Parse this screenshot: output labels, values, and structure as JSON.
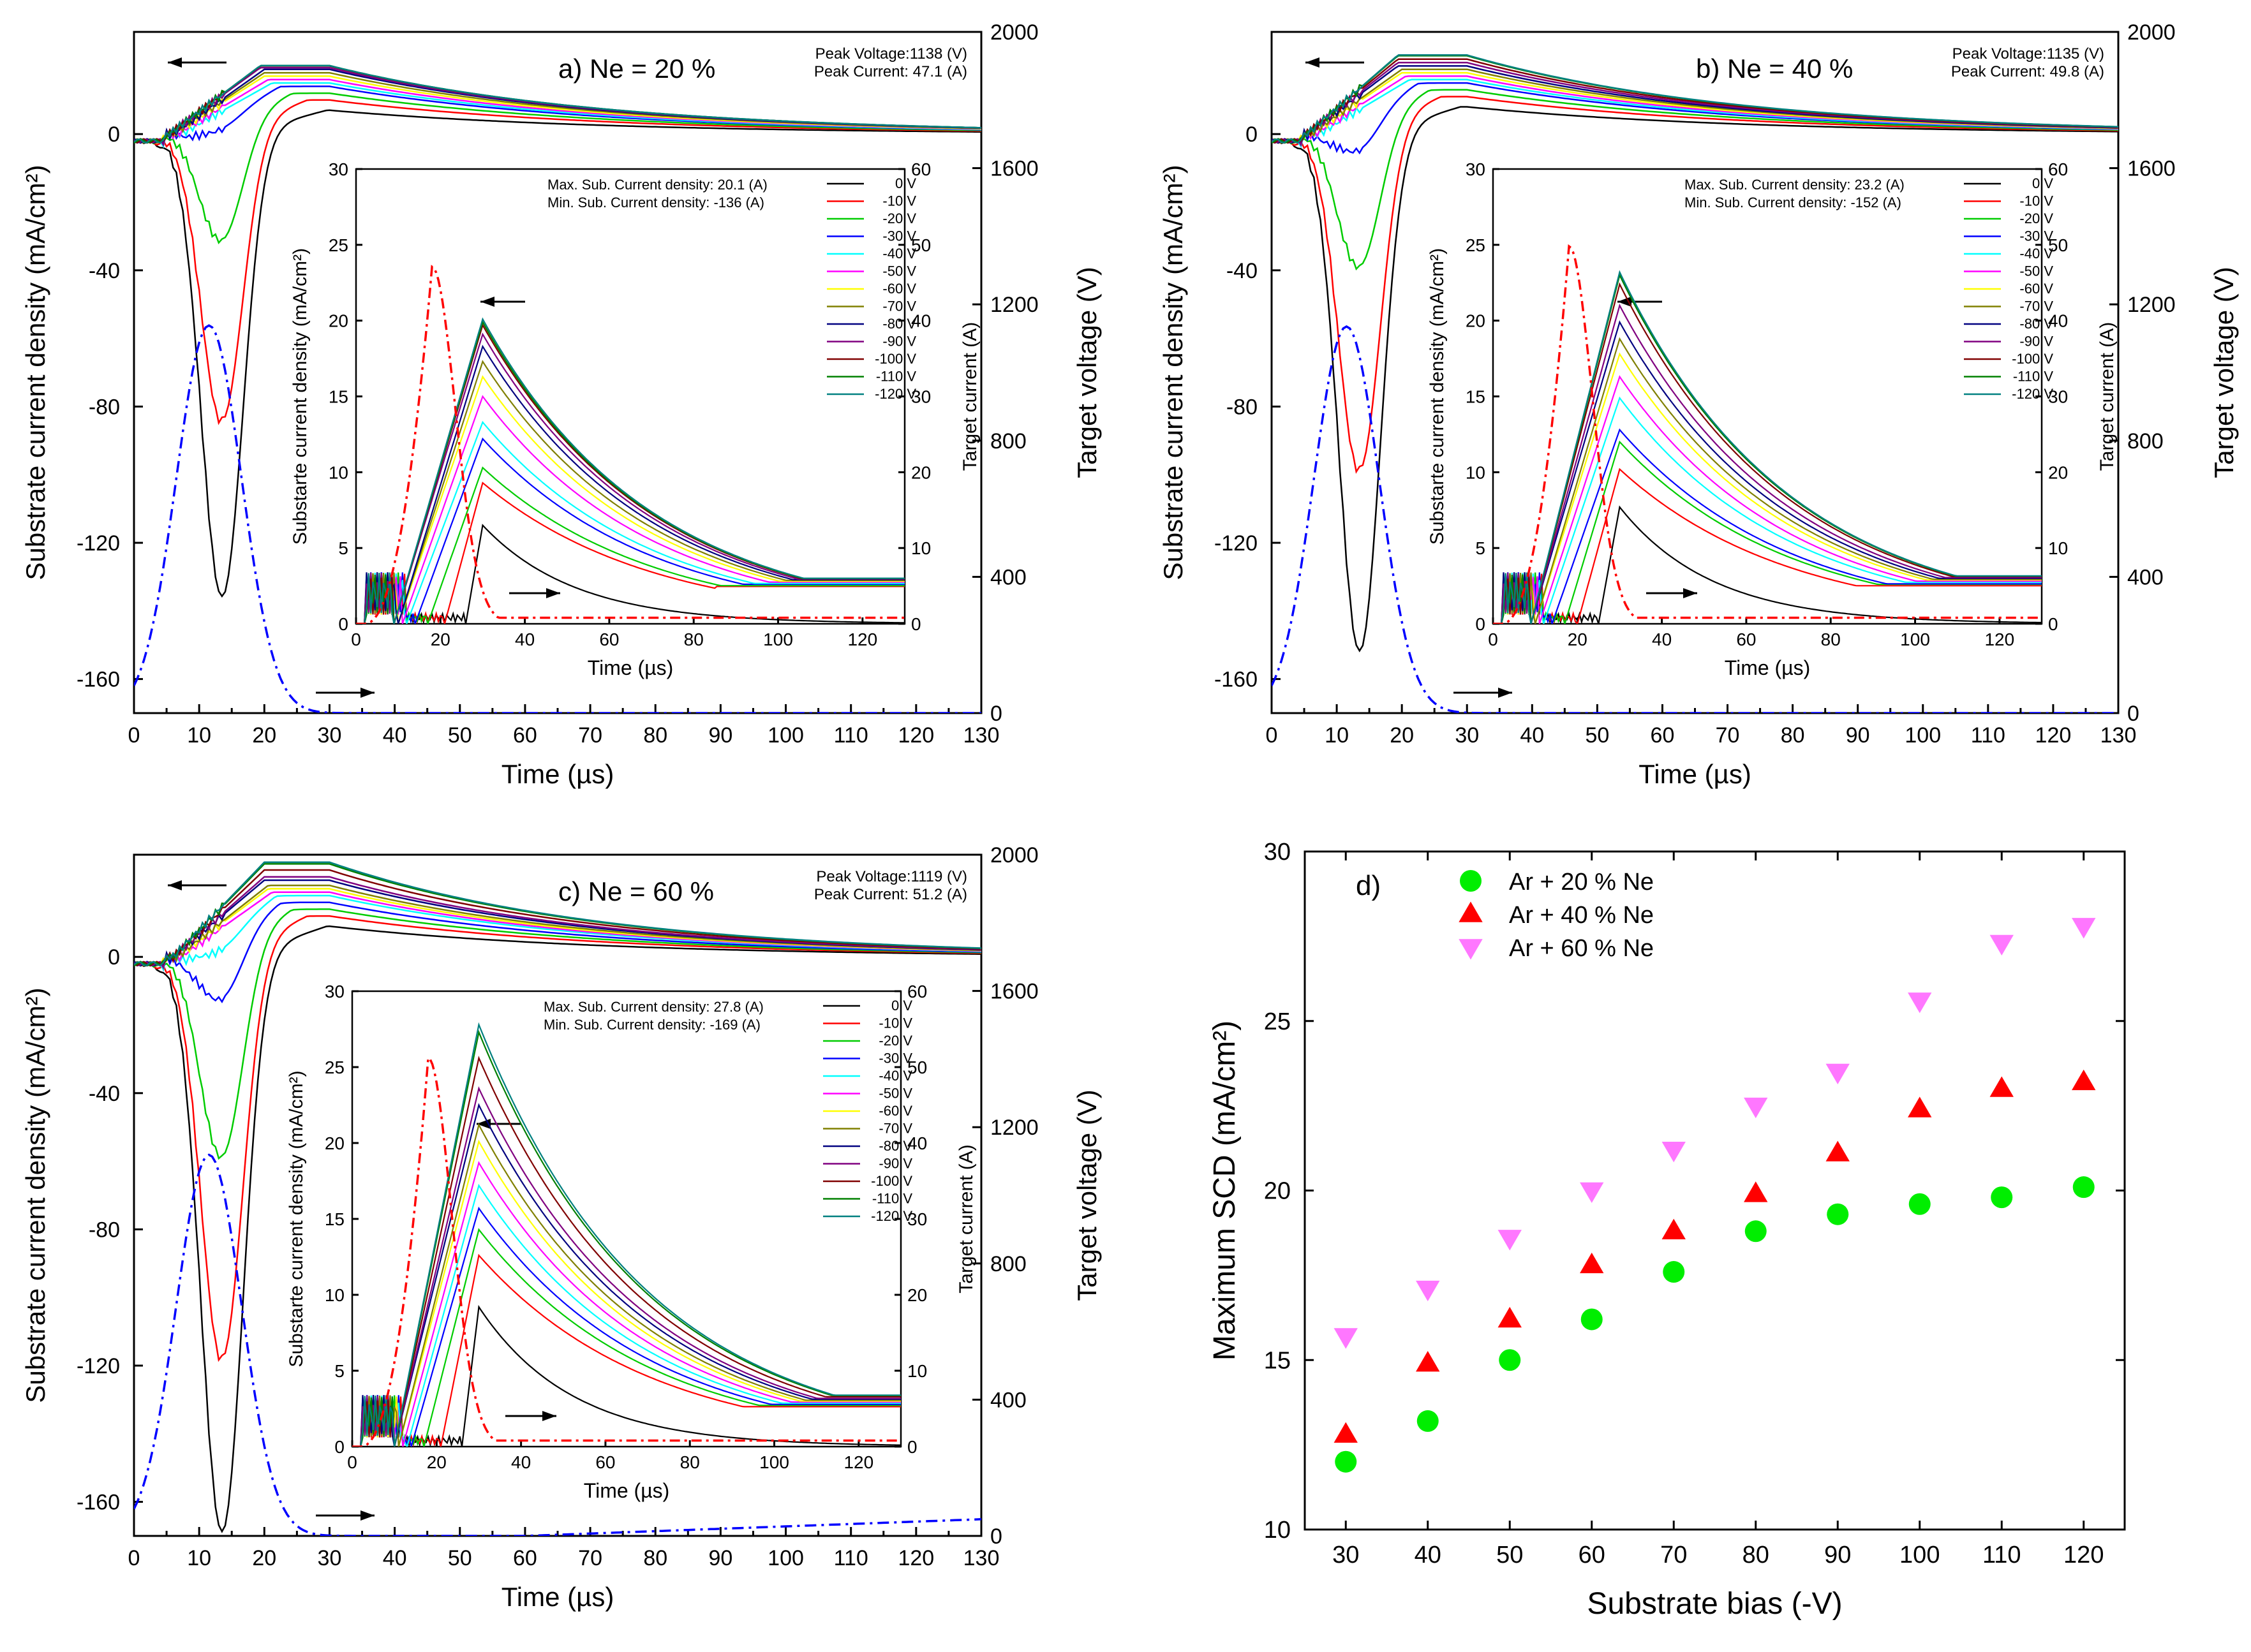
{
  "figure": {
    "bias_labels": [
      "0 V",
      "-10 V",
      "-20 V",
      "-30 V",
      "-40 V",
      "-50 V",
      "-60 V",
      "-70 V",
      "-80 V",
      "-90 V",
      "-100 V",
      "-110 V",
      "-120 V"
    ],
    "bias_colors": [
      "#000000",
      "#ff0000",
      "#00cc00",
      "#0000ff",
      "#00ffff",
      "#ff00ff",
      "#ffff00",
      "#808000",
      "#000080",
      "#800080",
      "#800000",
      "#008000",
      "#008080"
    ],
    "voltage_color": "#0000ff",
    "current_color": "#ff0000",
    "arrow_icon": "arrow-icon"
  },
  "chart_data": [
    {
      "id": "a",
      "type": "line",
      "panel_label": "a) Ne = 20 %",
      "xlabel": "Time (µs)",
      "ylabel": "Substrate current density (mA/cm²)",
      "y2label": "Target voltage (V)",
      "xlim": [
        0,
        130
      ],
      "ylim": [
        -170,
        30
      ],
      "y2lim": [
        0,
        2000
      ],
      "x_ticks": [
        0,
        10,
        20,
        30,
        40,
        50,
        60,
        70,
        80,
        90,
        100,
        110,
        120,
        130
      ],
      "y_ticks": [
        -160,
        -120,
        -80,
        -40,
        0
      ],
      "y2_ticks": [
        0,
        400,
        800,
        1200,
        1600,
        2000
      ],
      "peak_voltage": "Peak Voltage:1138 (V)",
      "peak_current": "Peak Current: 47.1 (A)",
      "main_min_scd": [
        -136,
        -85,
        -34,
        -3.5,
        0,
        0,
        0,
        0,
        0,
        0,
        0,
        0,
        0
      ],
      "main_end_scd": [
        7,
        10,
        12,
        14,
        15,
        16,
        17,
        18,
        19,
        19.5,
        20,
        20.1,
        20.1
      ],
      "voltage_peak_V": 1138,
      "inset": {
        "xlabel": "Time  (µs)",
        "ylabel": "Substarte current density (mA/cm²)",
        "y2label": "Target current (A)",
        "xlim": [
          0,
          130
        ],
        "ylim": [
          0,
          30
        ],
        "y2lim": [
          0,
          60
        ],
        "x_ticks": [
          0,
          20,
          40,
          60,
          80,
          100,
          120
        ],
        "y_ticks": [
          0,
          5,
          10,
          15,
          20,
          25,
          30
        ],
        "y2_ticks": [
          0,
          10,
          20,
          30,
          40,
          50,
          60
        ],
        "max_text": "Max. Sub. Current density: 20.1 (A)",
        "min_text": "Min. Sub. Current density: -136 (A)",
        "peaks": [
          6.5,
          9.3,
          10.3,
          12.2,
          13.3,
          15,
          16.3,
          17.3,
          18.3,
          19.1,
          19.7,
          19.9,
          20.1
        ],
        "onsets": [
          26,
          21,
          17,
          14,
          12,
          11,
          10,
          10,
          10,
          9,
          9,
          9,
          9
        ],
        "current_peak_A": 47.1
      }
    },
    {
      "id": "b",
      "type": "line",
      "panel_label": "b) Ne = 40 %",
      "xlabel": "Time (µs)",
      "ylabel": "Substrate current density (mA/cm²)",
      "y2label": "Target voltage (V)",
      "xlim": [
        0,
        130
      ],
      "ylim": [
        -170,
        30
      ],
      "y2lim": [
        0,
        2000
      ],
      "x_ticks": [
        0,
        10,
        20,
        30,
        40,
        50,
        60,
        70,
        80,
        90,
        100,
        110,
        120,
        130
      ],
      "y_ticks": [
        -160,
        -120,
        -80,
        -40,
        0
      ],
      "y2_ticks": [
        0,
        400,
        800,
        1200,
        1600,
        2000
      ],
      "peak_voltage": "Peak Voltage:1135 (V)",
      "peak_current": "Peak Current: 49.8 (A)",
      "main_min_scd": [
        -152,
        -100,
        -42,
        -10,
        0,
        0,
        0,
        0,
        0,
        0,
        0,
        0,
        0
      ],
      "main_end_scd": [
        8,
        11,
        13,
        15,
        16,
        17,
        18,
        19,
        20,
        21,
        22,
        23,
        23.2
      ],
      "voltage_peak_V": 1135,
      "inset": {
        "xlabel": "Time  (µs)",
        "ylabel": "Substarte current density (mA/cm²)",
        "y2label": "Target current (A)",
        "xlim": [
          0,
          130
        ],
        "ylim": [
          0,
          30
        ],
        "y2lim": [
          0,
          60
        ],
        "x_ticks": [
          0,
          20,
          40,
          60,
          80,
          100,
          120
        ],
        "y_ticks": [
          0,
          5,
          10,
          15,
          20,
          25,
          30
        ],
        "y2_ticks": [
          0,
          10,
          20,
          30,
          40,
          50,
          60
        ],
        "max_text": "Max. Sub. Current density: 23.2 (A)",
        "min_text": "Min. Sub. Current density: -152 (A)",
        "peaks": [
          7.7,
          10.2,
          12,
          12.8,
          14.9,
          16.3,
          17.8,
          18.8,
          19.9,
          21,
          22.4,
          23,
          23.2
        ],
        "onsets": [
          25,
          20,
          17,
          14,
          12,
          11,
          10,
          10,
          9,
          9,
          9,
          9,
          9
        ],
        "current_peak_A": 49.8
      }
    },
    {
      "id": "c",
      "type": "line",
      "panel_label": "c) Ne = 60 %",
      "xlabel": "Time (µs)",
      "ylabel": "Substrate current density (mA/cm²)",
      "y2label": "Target voltage (V)",
      "xlim": [
        0,
        130
      ],
      "ylim": [
        -170,
        30
      ],
      "y2lim": [
        0,
        2000
      ],
      "x_ticks": [
        0,
        10,
        20,
        30,
        40,
        50,
        60,
        70,
        80,
        90,
        100,
        110,
        120,
        130
      ],
      "y_ticks": [
        -160,
        -120,
        -80,
        -40,
        0
      ],
      "y2_ticks": [
        0,
        400,
        800,
        1200,
        1600,
        2000
      ],
      "peak_voltage": "Peak Voltage:1119 (V)",
      "peak_current": "Peak Current: 51.2 (A)",
      "main_min_scd": [
        -169,
        -119,
        -62,
        -18,
        -5,
        0,
        0,
        0,
        0,
        0,
        0,
        0,
        0
      ],
      "main_end_scd": [
        9,
        12,
        14,
        16,
        18,
        19,
        20,
        21,
        22.5,
        23.5,
        25.5,
        27.3,
        27.8
      ],
      "voltage_peak_V": 1119,
      "inset": {
        "xlabel": "Time  (µs)",
        "ylabel": "Substarte current density (mA/cm²)",
        "y2label": "Target current (A)",
        "xlim": [
          0,
          130
        ],
        "ylim": [
          0,
          30
        ],
        "y2lim": [
          0,
          60
        ],
        "x_ticks": [
          0,
          20,
          40,
          60,
          80,
          100,
          120
        ],
        "y_ticks": [
          0,
          5,
          10,
          15,
          20,
          25,
          30
        ],
        "y2_ticks": [
          0,
          10,
          20,
          30,
          40,
          50,
          60
        ],
        "max_text": "Max. Sub. Current density: 27.8 (A)",
        "min_text": "Min. Sub. Current density: -169 (A)",
        "peaks": [
          9.2,
          12.6,
          14.3,
          15.7,
          17.2,
          18.7,
          20.1,
          21.2,
          22.5,
          23.6,
          25.6,
          27.3,
          27.8
        ],
        "onsets": [
          26,
          21,
          17,
          14,
          13,
          12,
          11,
          11,
          10,
          10,
          10,
          10,
          10
        ],
        "current_peak_A": 51.2
      }
    },
    {
      "id": "d",
      "type": "scatter",
      "panel_label": "d)",
      "xlabel": "Substrate bias (-V)",
      "ylabel": "Maximum SCD (mA/cm²)",
      "xlim": [
        25,
        125
      ],
      "ylim": [
        10,
        30
      ],
      "x_ticks": [
        30,
        40,
        50,
        60,
        70,
        80,
        90,
        100,
        110,
        120
      ],
      "y_ticks": [
        10,
        15,
        20,
        25,
        30
      ],
      "x": [
        30,
        40,
        50,
        60,
        70,
        80,
        90,
        100,
        110,
        120
      ],
      "series": [
        {
          "name": "Ar + 20 % Ne",
          "marker": "circle",
          "color": "#00ee00",
          "values": [
            12.0,
            13.2,
            15.0,
            16.2,
            17.6,
            18.8,
            19.3,
            19.6,
            19.8,
            20.1
          ]
        },
        {
          "name": "Ar + 40 % Ne",
          "marker": "triangle-up",
          "color": "#ff0000",
          "values": [
            12.8,
            14.9,
            16.2,
            17.8,
            18.8,
            19.9,
            21.1,
            22.4,
            23.0,
            23.2
          ]
        },
        {
          "name": "Ar + 60 % Ne",
          "marker": "triangle-down",
          "color": "#ff77ff",
          "values": [
            15.7,
            17.1,
            18.6,
            20.0,
            21.2,
            22.5,
            23.5,
            25.6,
            27.3,
            27.8
          ]
        }
      ]
    }
  ]
}
